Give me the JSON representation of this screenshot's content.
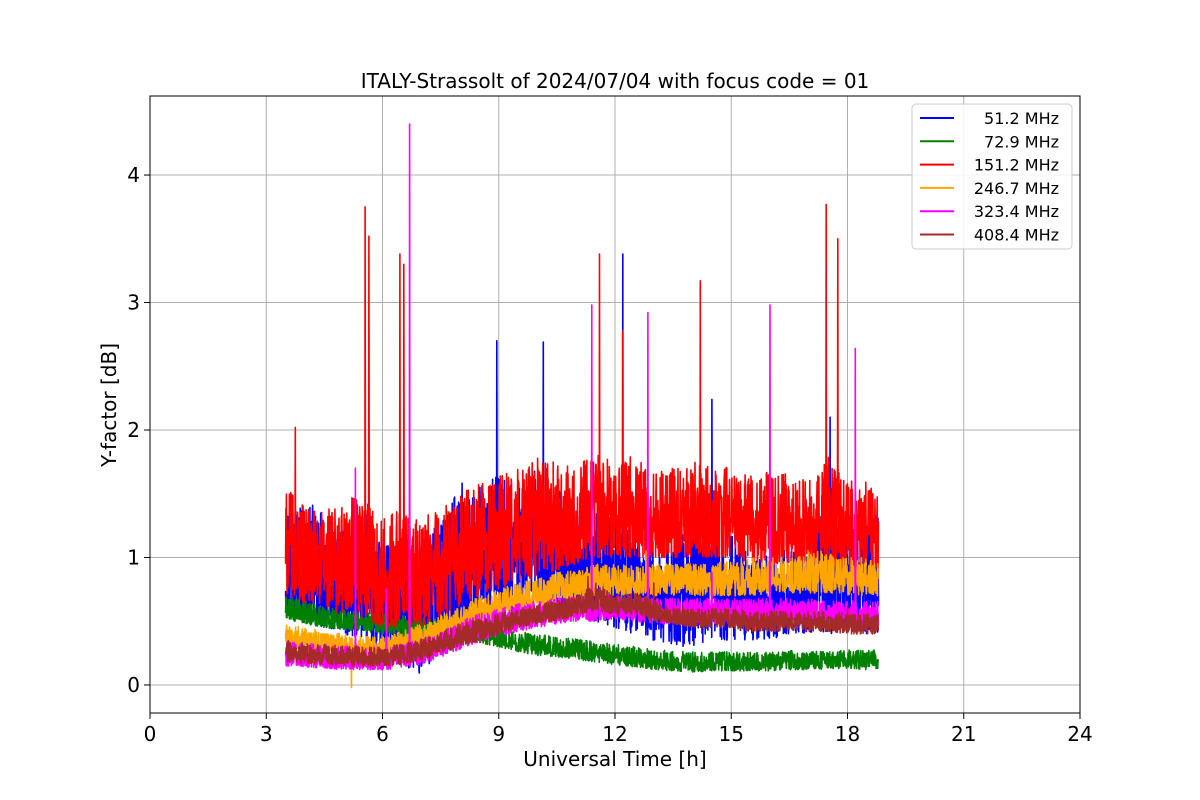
{
  "chart_data": {
    "type": "line",
    "title": "ITALY-Strassolt of 2024/07/04 with focus code = 01",
    "xlabel": "Universal Time [h]",
    "ylabel": "Y-factor [dB]",
    "xlim": [
      0,
      24
    ],
    "ylim": [
      -0.22,
      4.62
    ],
    "x_ticks": [
      0,
      3,
      6,
      9,
      12,
      15,
      18,
      21,
      24
    ],
    "y_ticks": [
      0,
      1,
      2,
      3,
      4
    ],
    "grid": true,
    "legend_position": "top-right",
    "data_range_x": [
      3.5,
      18.8
    ],
    "series": [
      {
        "name": "51.2 MHz",
        "color": "#0000ff",
        "x": [
          3.5,
          4.0,
          4.5,
          5.0,
          5.5,
          6.0,
          6.5,
          7.0,
          7.5,
          8.0,
          8.5,
          9.0,
          9.5,
          10.0,
          10.5,
          11.0,
          11.5,
          12.0,
          12.5,
          13.0,
          13.5,
          14.0,
          14.5,
          15.0,
          15.5,
          16.0,
          16.5,
          17.0,
          17.5,
          18.0,
          18.5,
          18.8
        ],
        "lo": [
          0.55,
          0.5,
          0.45,
          0.4,
          0.35,
          0.25,
          0.18,
          0.05,
          0.3,
          0.4,
          0.5,
          0.55,
          0.6,
          0.65,
          0.6,
          0.55,
          0.5,
          0.45,
          0.4,
          0.35,
          0.3,
          0.3,
          0.35,
          0.35,
          0.35,
          0.35,
          0.4,
          0.4,
          0.4,
          0.4,
          0.4,
          0.4
        ],
        "hi": [
          1.5,
          1.45,
          1.35,
          1.2,
          1.4,
          1.1,
          1.2,
          1.1,
          1.3,
          1.6,
          1.55,
          1.65,
          1.6,
          1.7,
          1.55,
          1.4,
          1.35,
          1.3,
          1.2,
          1.15,
          1.1,
          1.35,
          1.3,
          1.2,
          1.05,
          1.05,
          1.1,
          1.05,
          1.9,
          1.2,
          1.5,
          1.3
        ],
        "spikes": [
          [
            8.95,
            2.7
          ],
          [
            10.15,
            2.69
          ],
          [
            12.2,
            3.38
          ],
          [
            14.5,
            2.24
          ],
          [
            17.55,
            2.1
          ]
        ]
      },
      {
        "name": "72.9 MHz",
        "color": "#008000",
        "x": [
          3.5,
          4.0,
          4.5,
          5.0,
          5.5,
          6.0,
          6.5,
          7.0,
          7.5,
          8.0,
          8.5,
          9.0,
          9.5,
          10.0,
          10.5,
          11.0,
          11.5,
          12.0,
          12.5,
          13.0,
          13.5,
          14.0,
          14.5,
          15.0,
          15.5,
          16.0,
          16.5,
          17.0,
          17.5,
          18.0,
          18.5,
          18.8
        ],
        "lo": [
          0.52,
          0.48,
          0.45,
          0.43,
          0.42,
          0.4,
          0.38,
          0.36,
          0.35,
          0.34,
          0.33,
          0.3,
          0.26,
          0.23,
          0.22,
          0.2,
          0.18,
          0.16,
          0.14,
          0.12,
          0.11,
          0.1,
          0.11,
          0.11,
          0.11,
          0.11,
          0.12,
          0.12,
          0.12,
          0.13,
          0.12,
          0.13
        ],
        "hi": [
          0.7,
          0.66,
          0.62,
          0.6,
          0.58,
          0.56,
          0.55,
          0.54,
          0.52,
          0.5,
          0.48,
          0.45,
          0.42,
          0.4,
          0.38,
          0.36,
          0.34,
          0.32,
          0.3,
          0.28,
          0.27,
          0.26,
          0.26,
          0.26,
          0.26,
          0.26,
          0.27,
          0.27,
          0.27,
          0.28,
          0.27,
          0.28
        ],
        "spikes": []
      },
      {
        "name": "151.2 MHz",
        "color": "#ff0000",
        "x": [
          3.5,
          4.0,
          4.5,
          5.0,
          5.5,
          6.0,
          6.5,
          7.0,
          7.5,
          8.0,
          8.5,
          9.0,
          9.5,
          10.0,
          10.5,
          11.0,
          11.5,
          12.0,
          12.5,
          13.0,
          13.5,
          14.0,
          14.5,
          15.0,
          15.5,
          16.0,
          16.5,
          17.0,
          17.5,
          18.0,
          18.5,
          18.8
        ],
        "lo": [
          0.7,
          0.65,
          0.6,
          0.55,
          0.5,
          0.45,
          0.45,
          0.45,
          0.5,
          0.6,
          0.7,
          0.75,
          0.8,
          0.85,
          0.9,
          0.95,
          1.0,
          1.0,
          1.0,
          1.0,
          1.0,
          1.0,
          1.0,
          1.0,
          0.95,
          0.95,
          0.95,
          0.95,
          0.95,
          0.9,
          0.9,
          0.9
        ],
        "hi": [
          1.55,
          1.4,
          1.4,
          1.45,
          1.5,
          1.3,
          1.4,
          1.3,
          1.4,
          1.5,
          1.6,
          1.65,
          1.7,
          1.8,
          1.75,
          1.7,
          1.85,
          1.75,
          1.8,
          1.7,
          1.7,
          1.75,
          1.75,
          1.7,
          1.65,
          1.7,
          1.65,
          1.6,
          1.8,
          1.6,
          1.6,
          1.5
        ],
        "spikes": [
          [
            3.75,
            2.02
          ],
          [
            5.55,
            3.75
          ],
          [
            5.65,
            3.52
          ],
          [
            6.45,
            3.38
          ],
          [
            6.55,
            3.3
          ],
          [
            11.6,
            3.38
          ],
          [
            12.2,
            2.78
          ],
          [
            14.2,
            3.17
          ],
          [
            17.45,
            3.77
          ],
          [
            17.75,
            3.5
          ]
        ]
      },
      {
        "name": "246.7 MHz",
        "color": "#ffa500",
        "x": [
          3.5,
          4.0,
          4.5,
          5.0,
          5.5,
          6.0,
          6.5,
          7.0,
          7.5,
          8.0,
          8.5,
          9.0,
          9.5,
          10.0,
          10.5,
          11.0,
          11.5,
          12.0,
          12.5,
          13.0,
          13.5,
          14.0,
          14.5,
          15.0,
          15.5,
          16.0,
          16.5,
          17.0,
          17.5,
          18.0,
          18.5,
          18.8
        ],
        "lo": [
          0.3,
          0.28,
          0.27,
          0.25,
          0.22,
          0.22,
          0.25,
          0.28,
          0.35,
          0.42,
          0.48,
          0.55,
          0.6,
          0.62,
          0.65,
          0.67,
          0.7,
          0.7,
          0.7,
          0.7,
          0.7,
          0.7,
          0.7,
          0.7,
          0.7,
          0.72,
          0.72,
          0.72,
          0.72,
          0.7,
          0.7,
          0.7
        ],
        "hi": [
          0.48,
          0.45,
          0.42,
          0.4,
          0.38,
          0.38,
          0.42,
          0.48,
          0.55,
          0.62,
          0.7,
          0.75,
          0.8,
          0.85,
          0.88,
          0.9,
          0.95,
          0.95,
          0.95,
          0.95,
          0.95,
          0.95,
          0.95,
          0.98,
          1.0,
          1.0,
          1.0,
          1.05,
          1.05,
          1.0,
          1.0,
          0.95
        ],
        "spikes": [
          [
            5.2,
            -0.02
          ],
          [
            12.8,
            1.05
          ]
        ]
      },
      {
        "name": "323.4 MHz",
        "color": "#ff00ff",
        "x": [
          3.5,
          4.0,
          4.5,
          5.0,
          5.5,
          6.0,
          6.5,
          7.0,
          7.5,
          8.0,
          8.5,
          9.0,
          9.5,
          10.0,
          10.5,
          11.0,
          11.5,
          12.0,
          12.5,
          13.0,
          13.5,
          14.0,
          14.5,
          15.0,
          15.5,
          16.0,
          16.5,
          17.0,
          17.5,
          18.0,
          18.5,
          18.8
        ],
        "lo": [
          0.15,
          0.14,
          0.13,
          0.12,
          0.12,
          0.12,
          0.13,
          0.16,
          0.22,
          0.28,
          0.34,
          0.38,
          0.42,
          0.45,
          0.48,
          0.5,
          0.5,
          0.52,
          0.5,
          0.48,
          0.48,
          0.48,
          0.48,
          0.48,
          0.48,
          0.48,
          0.48,
          0.48,
          0.48,
          0.46,
          0.46,
          0.46
        ],
        "hi": [
          0.35,
          0.33,
          0.32,
          0.31,
          0.3,
          0.3,
          0.32,
          0.36,
          0.42,
          0.5,
          0.56,
          0.6,
          0.64,
          0.66,
          0.68,
          0.7,
          0.72,
          0.72,
          0.7,
          0.68,
          0.68,
          0.68,
          0.68,
          0.68,
          0.68,
          0.68,
          0.68,
          0.68,
          0.66,
          0.66,
          0.66,
          0.66
        ],
        "spikes": [
          [
            5.3,
            1.7
          ],
          [
            6.1,
            0.75
          ],
          [
            6.7,
            4.4
          ],
          [
            11.4,
            2.98
          ],
          [
            12.85,
            2.92
          ],
          [
            14.5,
            0.88
          ],
          [
            16.0,
            2.98
          ],
          [
            18.2,
            2.64
          ]
        ]
      },
      {
        "name": "408.4 MHz",
        "color": "#a52a2a",
        "x": [
          3.5,
          4.0,
          4.5,
          5.0,
          5.5,
          6.0,
          6.5,
          7.0,
          7.5,
          8.0,
          8.5,
          9.0,
          9.5,
          10.0,
          10.5,
          11.0,
          11.5,
          12.0,
          12.5,
          13.0,
          13.5,
          14.0,
          14.5,
          15.0,
          15.5,
          16.0,
          16.5,
          17.0,
          17.5,
          18.0,
          18.5,
          18.8
        ],
        "lo": [
          0.18,
          0.17,
          0.16,
          0.15,
          0.15,
          0.15,
          0.16,
          0.2,
          0.25,
          0.3,
          0.35,
          0.4,
          0.45,
          0.48,
          0.5,
          0.55,
          0.58,
          0.55,
          0.55,
          0.5,
          0.48,
          0.45,
          0.45,
          0.45,
          0.42,
          0.42,
          0.42,
          0.42,
          0.42,
          0.4,
          0.4,
          0.4
        ],
        "hi": [
          0.35,
          0.33,
          0.32,
          0.31,
          0.3,
          0.3,
          0.32,
          0.36,
          0.42,
          0.48,
          0.52,
          0.56,
          0.6,
          0.63,
          0.66,
          0.7,
          0.8,
          0.7,
          0.72,
          0.68,
          0.62,
          0.6,
          0.6,
          0.6,
          0.58,
          0.58,
          0.58,
          0.58,
          0.58,
          0.56,
          0.56,
          0.55
        ],
        "spikes": [
          [
            11.3,
            0.85
          ],
          [
            13.0,
            0.8
          ],
          [
            18.0,
            0.62
          ]
        ]
      }
    ]
  }
}
